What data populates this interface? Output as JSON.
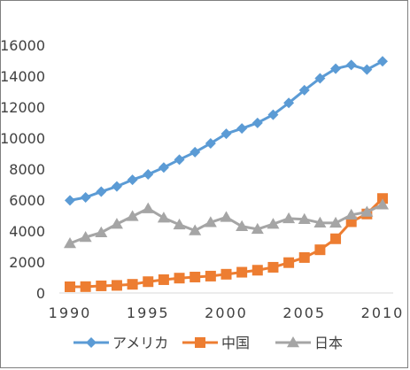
{
  "chart_data": {
    "type": "line",
    "x": [
      1990,
      1991,
      1992,
      1993,
      1994,
      1995,
      1996,
      1997,
      1998,
      1999,
      2000,
      2001,
      2002,
      2003,
      2004,
      2005,
      2006,
      2007,
      2008,
      2009,
      2010
    ],
    "x_ticks": [
      1990,
      1995,
      2000,
      2005,
      2010
    ],
    "y_ticks": [
      0,
      2000,
      4000,
      6000,
      8000,
      10000,
      12000,
      14000,
      16000
    ],
    "ylim": [
      0,
      16000
    ],
    "grid": false,
    "legend_position": "bottom",
    "series": [
      {
        "name": "アメリカ",
        "marker": "diamond",
        "color": "#5b9bd5",
        "values": [
          5980,
          6170,
          6540,
          6880,
          7310,
          7660,
          8100,
          8610,
          9090,
          9660,
          10280,
          10620,
          10980,
          11510,
          12270,
          13090,
          13860,
          14480,
          14720,
          14420,
          14960
        ]
      },
      {
        "name": "中国",
        "marker": "square",
        "color": "#ed7d31",
        "values": [
          400,
          410,
          460,
          490,
          560,
          730,
          860,
          960,
          1030,
          1090,
          1210,
          1340,
          1470,
          1660,
          1960,
          2290,
          2790,
          3500,
          4600,
          5100,
          6100
        ]
      },
      {
        "name": "日本",
        "marker": "triangle",
        "color": "#a5a5a5",
        "values": [
          3200,
          3600,
          3900,
          4450,
          4950,
          5450,
          4850,
          4410,
          4030,
          4560,
          4890,
          4300,
          4120,
          4450,
          4810,
          4760,
          4530,
          4520,
          5040,
          5230,
          5700
        ]
      }
    ]
  }
}
